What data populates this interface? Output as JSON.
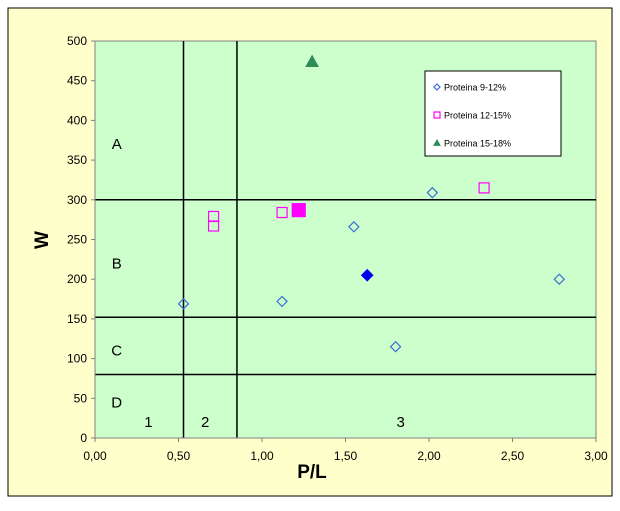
{
  "chart_data": {
    "type": "scatter",
    "xlabel": "P/L",
    "ylabel": "W",
    "xlim": [
      0,
      3
    ],
    "ylim": [
      0,
      500
    ],
    "x_ticks": [
      "0,00",
      "0,50",
      "1,00",
      "1,50",
      "2,00",
      "2,50",
      "3,00"
    ],
    "x_tick_values": [
      0,
      0.5,
      1.0,
      1.5,
      2.0,
      2.5,
      3.0
    ],
    "y_ticks": [
      "0",
      "50",
      "100",
      "150",
      "200",
      "250",
      "300",
      "350",
      "400",
      "450",
      "500"
    ],
    "y_tick_values": [
      0,
      50,
      100,
      150,
      200,
      250,
      300,
      350,
      400,
      450,
      500
    ],
    "grid": false,
    "legend_position": "top-right",
    "reference_lines": {
      "horizontal": [
        80,
        152,
        300
      ],
      "vertical": [
        0.53,
        0.85
      ]
    },
    "region_labels": [
      {
        "text": "A",
        "x": 0.13,
        "y": 370
      },
      {
        "text": "B",
        "x": 0.13,
        "y": 220
      },
      {
        "text": "C",
        "x": 0.13,
        "y": 110
      },
      {
        "text": "D",
        "x": 0.13,
        "y": 45
      },
      {
        "text": "1",
        "x": 0.32,
        "y": 20
      },
      {
        "text": "2",
        "x": 0.66,
        "y": 20
      },
      {
        "text": "3",
        "x": 1.83,
        "y": 20
      }
    ],
    "series": [
      {
        "name": "Proteina 9-12%",
        "marker": "diamond-open",
        "color": "#3b6fd4",
        "points": [
          {
            "x": 0.53,
            "y": 169
          },
          {
            "x": 1.12,
            "y": 172
          },
          {
            "x": 1.55,
            "y": 266
          },
          {
            "x": 2.02,
            "y": 309
          },
          {
            "x": 1.8,
            "y": 115
          },
          {
            "x": 2.78,
            "y": 200
          }
        ]
      },
      {
        "name": "Proteina 12-15%",
        "marker": "square-open",
        "color": "#ff00ff",
        "points": [
          {
            "x": 0.71,
            "y": 279
          },
          {
            "x": 0.71,
            "y": 267
          },
          {
            "x": 1.12,
            "y": 284
          },
          {
            "x": 2.33,
            "y": 315
          }
        ]
      },
      {
        "name": "Proteina 15-18%",
        "marker": "triangle-filled",
        "color": "#2e8b57",
        "points": [
          {
            "x": 1.3,
            "y": 474
          }
        ]
      },
      {
        "name": "",
        "marker": "diamond-filled",
        "color": "#0000ee",
        "points": [
          {
            "x": 1.63,
            "y": 205
          }
        ]
      },
      {
        "name": "",
        "marker": "square-filled",
        "color": "#ff00ff",
        "points": [
          {
            "x": 1.22,
            "y": 287
          }
        ]
      }
    ],
    "legend": [
      "Proteina 9-12%",
      "Proteina 12-15%",
      "Proteina 15-18%"
    ]
  },
  "colors": {
    "chart_area_bg": "#ffffcc",
    "plot_area_bg": "#ccffcc",
    "frame_border": "#000000",
    "reference_line": "#000000",
    "axis": "#808080"
  }
}
